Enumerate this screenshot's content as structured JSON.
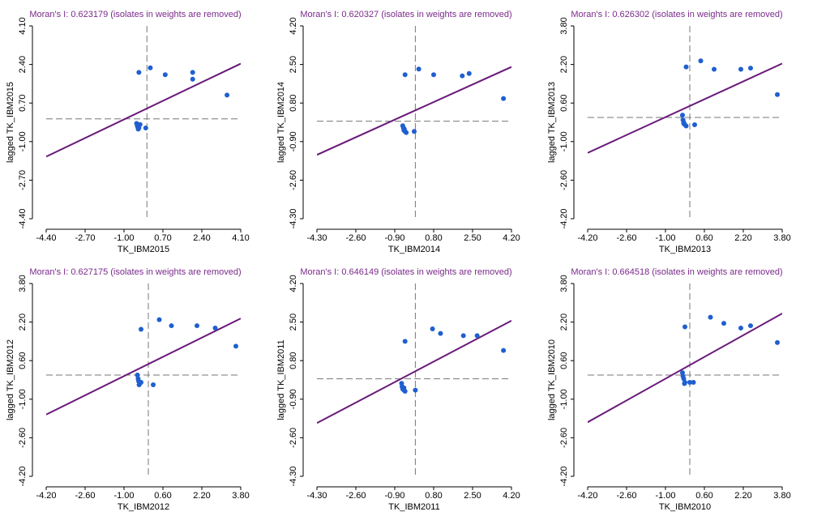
{
  "chart_data": [
    {
      "type": "scatter",
      "title": "Moran's I: 0.623179 (isolates in weights are removed)",
      "x_label": "TK_IBM2015",
      "y_label": "lagged TK_IBM2015",
      "x": [
        -0.45,
        -0.4,
        -0.35,
        -0.42,
        -0.38,
        -0.3,
        -0.05,
        -0.35,
        0.15,
        0.8,
        2.0,
        2.0,
        3.5
      ],
      "y": [
        -0.2,
        -0.35,
        -0.4,
        -0.3,
        -0.45,
        -0.25,
        -0.4,
        2.05,
        2.25,
        1.95,
        2.05,
        1.75,
        1.05
      ],
      "color": "#1f5fd0",
      "line_color": "#6a1a7a",
      "grid": false,
      "xlim": [
        -4.4,
        4.1
      ],
      "ylim": [
        -4.4,
        4.1
      ],
      "xticks": [
        {
          "value": -4.4,
          "label": "-4.40"
        },
        {
          "value": -2.7,
          "label": "-2.70"
        },
        {
          "value": -1.0,
          "label": "-1.00"
        },
        {
          "value": 0.7,
          "label": "0.70"
        },
        {
          "value": 2.4,
          "label": "2.40"
        },
        {
          "value": 4.1,
          "label": "4.10"
        }
      ],
      "yticks": [
        {
          "value": -4.4,
          "label": "-4.40"
        },
        {
          "value": -2.7,
          "label": "-2.70"
        },
        {
          "value": -1.0,
          "label": "-1.00"
        },
        {
          "value": 0.7,
          "label": "0.70"
        },
        {
          "value": 2.4,
          "label": "2.40"
        },
        {
          "value": 4.1,
          "label": "4.10"
        }
      ]
    },
    {
      "type": "scatter",
      "title": "Moran's I: 0.620327 (isolates in weights are removed)",
      "x_label": "TK_IBM2014",
      "y_label": "lagged TK_IBM2014",
      "x": [
        -0.55,
        -0.5,
        -0.45,
        -0.52,
        -0.4,
        -0.48,
        -0.05,
        -0.45,
        0.15,
        0.8,
        2.05,
        2.35,
        3.85
      ],
      "y": [
        -0.2,
        -0.4,
        -0.45,
        -0.3,
        -0.5,
        -0.35,
        -0.45,
        2.05,
        2.3,
        2.05,
        2.0,
        2.1,
        1.0
      ],
      "color": "#1f5fd0",
      "line_color": "#6a1a7a",
      "grid": false,
      "xlim": [
        -4.3,
        4.2
      ],
      "ylim": [
        -4.3,
        4.2
      ],
      "xticks": [
        {
          "value": -4.3,
          "label": "-4.30"
        },
        {
          "value": -2.6,
          "label": "-2.60"
        },
        {
          "value": -0.9,
          "label": "-0.90"
        },
        {
          "value": 0.8,
          "label": "0.80"
        },
        {
          "value": 2.5,
          "label": "2.50"
        },
        {
          "value": 4.2,
          "label": "4.20"
        }
      ],
      "yticks": [
        {
          "value": -4.3,
          "label": "-4.30"
        },
        {
          "value": -2.6,
          "label": "-2.60"
        },
        {
          "value": -0.9,
          "label": "-0.90"
        },
        {
          "value": 0.8,
          "label": "0.80"
        },
        {
          "value": 2.5,
          "label": "2.50"
        },
        {
          "value": 4.2,
          "label": "4.20"
        }
      ]
    },
    {
      "type": "scatter",
      "title": "Moran's I: 0.626302 (isolates in weights are removed)",
      "x_label": "TK_IBM2013",
      "y_label": "lagged TK_IBM2013",
      "x": [
        -0.3,
        -0.25,
        -0.2,
        -0.28,
        -0.15,
        -0.25,
        0.2,
        -0.15,
        0.45,
        1.0,
        2.1,
        2.5,
        3.6
      ],
      "y": [
        0.1,
        -0.2,
        -0.3,
        -0.1,
        -0.35,
        -0.25,
        -0.3,
        2.1,
        2.35,
        2.0,
        2.0,
        2.05,
        0.95
      ],
      "color": "#1f5fd0",
      "line_color": "#6a1a7a",
      "grid": false,
      "xlim": [
        -4.2,
        3.8
      ],
      "ylim": [
        -4.2,
        3.8
      ],
      "xticks": [
        {
          "value": -4.2,
          "label": "-4.20"
        },
        {
          "value": -2.6,
          "label": "-2.60"
        },
        {
          "value": -1.0,
          "label": "-1.00"
        },
        {
          "value": 0.6,
          "label": "0.60"
        },
        {
          "value": 2.2,
          "label": "2.20"
        },
        {
          "value": 3.8,
          "label": "3.80"
        }
      ],
      "yticks": [
        {
          "value": -4.2,
          "label": "-4.20"
        },
        {
          "value": -2.6,
          "label": "-2.60"
        },
        {
          "value": -1.0,
          "label": "-1.00"
        },
        {
          "value": 0.6,
          "label": "0.60"
        },
        {
          "value": 2.2,
          "label": "2.20"
        },
        {
          "value": 3.8,
          "label": "3.80"
        }
      ]
    },
    {
      "type": "scatter",
      "title": "Moran's I: 0.627175 (isolates in weights are removed)",
      "x_label": "TK_IBM2012",
      "y_label": "lagged TK_IBM2012",
      "x": [
        -0.45,
        -0.4,
        -0.35,
        -0.42,
        -0.38,
        -0.3,
        0.2,
        -0.3,
        0.45,
        0.95,
        2.0,
        2.75,
        3.6
      ],
      "y": [
        0.0,
        -0.25,
        -0.35,
        -0.15,
        -0.4,
        -0.3,
        -0.4,
        1.9,
        2.3,
        2.05,
        2.05,
        1.95,
        1.2
      ],
      "color": "#1f5fd0",
      "line_color": "#6a1a7a",
      "grid": false,
      "xlim": [
        -4.2,
        3.8
      ],
      "ylim": [
        -4.2,
        3.8
      ],
      "xticks": [
        {
          "value": -4.2,
          "label": "-4.20"
        },
        {
          "value": -2.6,
          "label": "-2.60"
        },
        {
          "value": -1.0,
          "label": "-1.00"
        },
        {
          "value": 0.6,
          "label": "0.60"
        },
        {
          "value": 2.2,
          "label": "2.20"
        },
        {
          "value": 3.8,
          "label": "3.80"
        }
      ],
      "yticks": [
        {
          "value": -4.2,
          "label": "-4.20"
        },
        {
          "value": -2.6,
          "label": "-2.60"
        },
        {
          "value": -1.0,
          "label": "-1.00"
        },
        {
          "value": 0.6,
          "label": "0.60"
        },
        {
          "value": 2.2,
          "label": "2.20"
        },
        {
          "value": 3.8,
          "label": "3.80"
        }
      ]
    },
    {
      "type": "scatter",
      "title": "Moran's I: 0.646149 (isolates in weights are removed)",
      "x_label": "TK_IBM2011",
      "y_label": "lagged TK_IBM2011",
      "x": [
        -0.6,
        -0.55,
        -0.5,
        -0.58,
        -0.45,
        -0.5,
        0.0,
        -0.45,
        0.75,
        1.1,
        2.1,
        2.7,
        3.85
      ],
      "y": [
        -0.2,
        -0.45,
        -0.5,
        -0.35,
        -0.55,
        -0.4,
        -0.5,
        1.65,
        2.2,
        2.0,
        1.9,
        1.9,
        1.25
      ],
      "color": "#1f5fd0",
      "line_color": "#6a1a7a",
      "grid": false,
      "xlim": [
        -4.3,
        4.2
      ],
      "ylim": [
        -4.3,
        4.2
      ],
      "xticks": [
        {
          "value": -4.3,
          "label": "-4.30"
        },
        {
          "value": -2.6,
          "label": "-2.60"
        },
        {
          "value": -0.9,
          "label": "-0.90"
        },
        {
          "value": 0.8,
          "label": "0.80"
        },
        {
          "value": 2.5,
          "label": "2.50"
        },
        {
          "value": 4.2,
          "label": "4.20"
        }
      ],
      "yticks": [
        {
          "value": -4.3,
          "label": "-4.30"
        },
        {
          "value": -2.6,
          "label": "-2.60"
        },
        {
          "value": -0.9,
          "label": "-0.90"
        },
        {
          "value": 0.8,
          "label": "0.80"
        },
        {
          "value": 2.5,
          "label": "2.50"
        },
        {
          "value": 4.2,
          "label": "4.20"
        }
      ]
    },
    {
      "type": "scatter",
      "title": "Moran's I: 0.664518 (isolates in weights are removed)",
      "x_label": "TK_IBM2010",
      "y_label": "lagged TK_IBM2010",
      "x": [
        -0.3,
        -0.25,
        -0.2,
        -0.28,
        -0.22,
        0.15,
        0.0,
        -0.2,
        0.85,
        1.4,
        2.1,
        2.5,
        3.6
      ],
      "y": [
        0.1,
        -0.15,
        -0.3,
        -0.05,
        -0.35,
        -0.3,
        -0.3,
        2.0,
        2.4,
        2.15,
        1.95,
        2.05,
        1.35
      ],
      "color": "#1f5fd0",
      "line_color": "#6a1a7a",
      "grid": false,
      "xlim": [
        -4.2,
        3.8
      ],
      "ylim": [
        -4.2,
        3.8
      ],
      "xticks": [
        {
          "value": -4.2,
          "label": "-4.20"
        },
        {
          "value": -2.6,
          "label": "-2.60"
        },
        {
          "value": -1.0,
          "label": "-1.00"
        },
        {
          "value": 0.6,
          "label": "0.60"
        },
        {
          "value": 2.2,
          "label": "2.20"
        },
        {
          "value": 3.8,
          "label": "3.80"
        }
      ],
      "yticks": [
        {
          "value": -4.2,
          "label": "-4.20"
        },
        {
          "value": -2.6,
          "label": "-2.60"
        },
        {
          "value": -1.0,
          "label": "-1.00"
        },
        {
          "value": 0.6,
          "label": "0.60"
        },
        {
          "value": 2.2,
          "label": "2.20"
        },
        {
          "value": 3.8,
          "label": "3.80"
        }
      ]
    }
  ]
}
